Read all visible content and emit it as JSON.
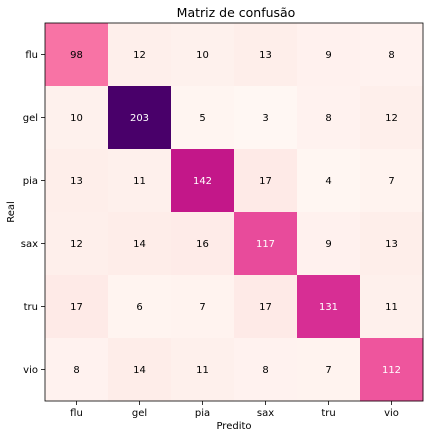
{
  "chart_data": {
    "type": "heatmap",
    "title": "Matriz de confusão",
    "xlabel": "Predito",
    "ylabel": "Real",
    "x_categories": [
      "flu",
      "gel",
      "pia",
      "sax",
      "tru",
      "vio"
    ],
    "y_categories": [
      "flu",
      "gel",
      "pia",
      "sax",
      "tru",
      "vio"
    ],
    "values": [
      [
        98,
        12,
        10,
        13,
        9,
        8
      ],
      [
        10,
        203,
        5,
        3,
        8,
        12
      ],
      [
        13,
        11,
        142,
        17,
        4,
        7
      ],
      [
        12,
        14,
        16,
        117,
        9,
        13
      ],
      [
        17,
        6,
        7,
        17,
        131,
        11
      ],
      [
        8,
        14,
        11,
        8,
        7,
        112
      ]
    ],
    "colormap": "RdPu",
    "vmin": 3,
    "vmax": 203,
    "grid": false,
    "colors": {
      "min": "#fff7f3",
      "max": "#49006a",
      "text_light": "#ffffff",
      "text_dark": "#000000"
    }
  }
}
